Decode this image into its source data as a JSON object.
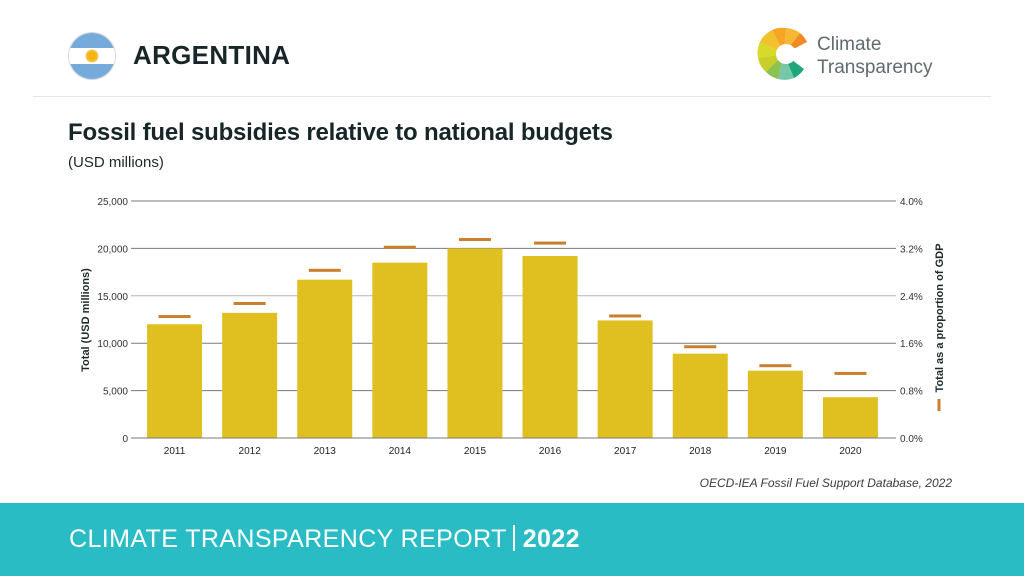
{
  "header": {
    "country": "ARGENTINA",
    "flag_icon": "argentina-flag-icon",
    "logo": {
      "line1": "Climate",
      "line2": "Transparency"
    }
  },
  "title": "Fossil fuel subsidies relative to national budgets",
  "subtitle": "(USD millions)",
  "source": "OECD-IEA Fossil Fuel Support Database, 2022",
  "footer": {
    "label": "CLIMATE TRANSPARENCY REPORT",
    "year": "2022"
  },
  "colors": {
    "bar": "#e0c020",
    "marker": "#c97f2d",
    "footer": "#2abcc5",
    "gridline": "#7a7a7a"
  },
  "chart_data": {
    "type": "bar",
    "title": "Fossil fuel subsidies relative to national budgets",
    "subtitle": "(USD millions)",
    "categories": [
      "2011",
      "2012",
      "2013",
      "2014",
      "2015",
      "2016",
      "2017",
      "2018",
      "2019",
      "2020"
    ],
    "series": [
      {
        "name": "Total (USD millions)",
        "type": "bar",
        "axis": "left",
        "values": [
          12000,
          13200,
          16700,
          18500,
          20000,
          19200,
          12400,
          8900,
          7100,
          4300
        ]
      },
      {
        "name": "Total as a proportion of GDP",
        "type": "marker",
        "axis": "right",
        "unit": "%",
        "values": [
          2.05,
          2.27,
          2.83,
          3.22,
          3.35,
          3.29,
          2.06,
          1.54,
          1.22,
          1.09
        ]
      }
    ],
    "ylabel": "Total (USD millions)",
    "y2label": "Total as a proportion of GDP",
    "ylim": [
      0,
      25000
    ],
    "y2lim": [
      0,
      4.0
    ],
    "yticks": [
      "0",
      "5,000",
      "10,000",
      "15,000",
      "20,000",
      "25,000"
    ],
    "y2ticks": [
      "0.0%",
      "0.8%",
      "1.6%",
      "2.4%",
      "3.2%",
      "4.0%"
    ],
    "grid": true,
    "legend": "right-axis"
  }
}
